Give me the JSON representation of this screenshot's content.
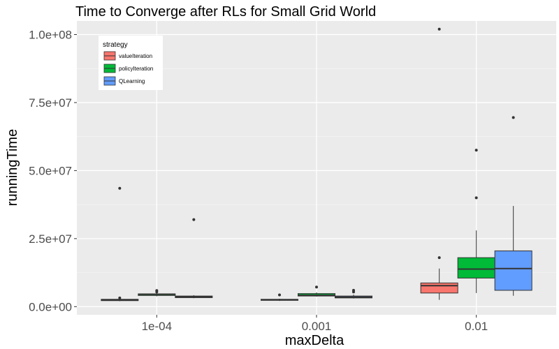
{
  "chart_data": {
    "type": "box",
    "title": "Time to Converge after RLs for Small Grid World",
    "xlabel": "maxDelta",
    "ylabel": "runningTime",
    "categories": [
      "1e-04",
      "0.001",
      "0.01"
    ],
    "ylim": [
      -3000000,
      105000000
    ],
    "y_ticks": [
      0,
      25000000,
      50000000,
      75000000,
      100000000
    ],
    "y_tick_labels": [
      "0.0e+00",
      "2.5e+07",
      "5.0e+07",
      "7.5e+07",
      "1.0e+08"
    ],
    "grid": true,
    "legend": {
      "title": "strategy",
      "position": "top-left"
    },
    "series": [
      {
        "name": "valueIteration",
        "color": "#F8766D",
        "boxes": [
          {
            "category": "1e-04",
            "min": 2000000,
            "q1": 2200000,
            "median": 2500000,
            "q3": 2700000,
            "max": 3000000,
            "outliers": [
              3200000,
              43500000
            ]
          },
          {
            "category": "0.001",
            "min": 2100000,
            "q1": 2300000,
            "median": 2500000,
            "q3": 2700000,
            "max": 2900000,
            "outliers": [
              4300000
            ]
          },
          {
            "category": "0.01",
            "min": 2500000,
            "q1": 5000000,
            "median": 7700000,
            "q3": 8700000,
            "max": 14000000,
            "outliers": [
              18000000,
              102000000
            ]
          }
        ]
      },
      {
        "name": "policyIteration",
        "color": "#00BA38",
        "boxes": [
          {
            "category": "1e-04",
            "min": 3800000,
            "q1": 4100000,
            "median": 4500000,
            "q3": 4700000,
            "max": 5000000,
            "outliers": [
              5400000,
              5900000
            ]
          },
          {
            "category": "0.001",
            "min": 3700000,
            "q1": 3900000,
            "median": 4200000,
            "q3": 4800000,
            "max": 5200000,
            "outliers": [
              7200000
            ]
          },
          {
            "category": "0.01",
            "min": 5000000,
            "q1": 10500000,
            "median": 13800000,
            "q3": 18000000,
            "max": 28000000,
            "outliers": [
              40000000,
              57500000
            ]
          }
        ]
      },
      {
        "name": "QLearning",
        "color": "#619CFF",
        "boxes": [
          {
            "category": "1e-04",
            "min": 3100000,
            "q1": 3300000,
            "median": 3600000,
            "q3": 3900000,
            "max": 4200000,
            "outliers": [
              32000000
            ]
          },
          {
            "category": "0.001",
            "min": 3000000,
            "q1": 3200000,
            "median": 3500000,
            "q3": 3900000,
            "max": 4400000,
            "outliers": [
              5400000,
              6000000
            ]
          },
          {
            "category": "0.01",
            "min": 4000000,
            "q1": 6000000,
            "median": 14000000,
            "q3": 20500000,
            "max": 37000000,
            "outliers": [
              69500000
            ]
          }
        ]
      }
    ]
  }
}
